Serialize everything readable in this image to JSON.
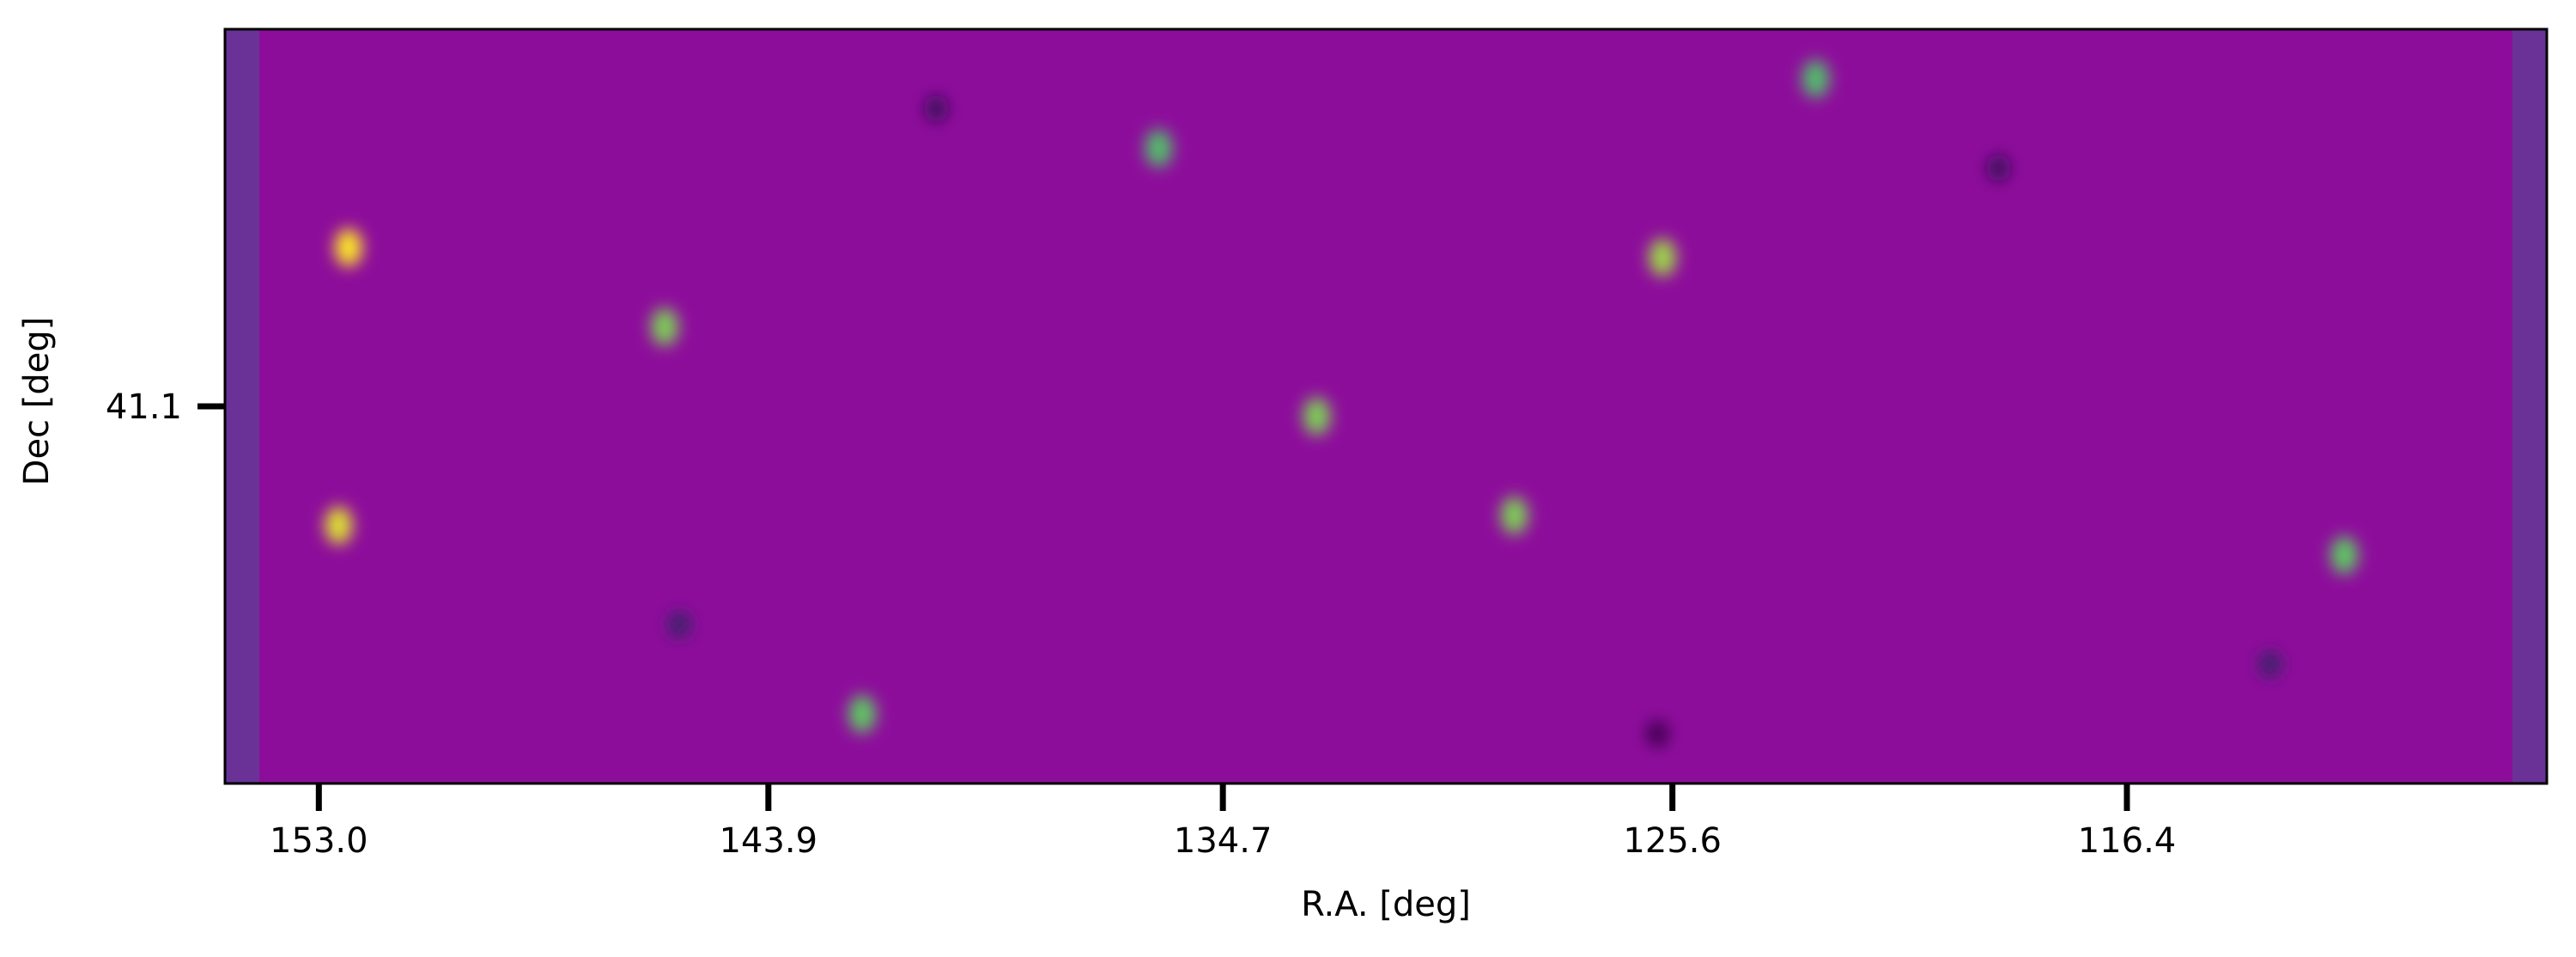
{
  "chart_data": {
    "type": "heatmap",
    "title": "",
    "xlabel": "R.A. [deg]",
    "ylabel": "Dec [deg]",
    "x_ticks": [
      {
        "value": 153.0,
        "label": "153.0"
      },
      {
        "value": 143.9,
        "label": "143.9"
      },
      {
        "value": 134.7,
        "label": "134.7"
      },
      {
        "value": 125.6,
        "label": "125.6"
      },
      {
        "value": 116.4,
        "label": "116.4"
      }
    ],
    "y_ticks": [
      {
        "value": 41.1,
        "label": "41.1"
      }
    ],
    "xlim": [
      154.9,
      107.9
    ],
    "x_inverted": true,
    "ylim": [
      37.3,
      44.9
    ],
    "colormap": "viridis",
    "colorbar": false,
    "grid": false,
    "bright_spots": [
      {
        "x": 152.4,
        "y": 42.7,
        "intensity": 1.0
      },
      {
        "x": 152.6,
        "y": 39.9,
        "intensity": 0.95
      },
      {
        "x": 146.0,
        "y": 41.9,
        "intensity": 0.8
      },
      {
        "x": 132.8,
        "y": 41.0,
        "intensity": 0.8
      },
      {
        "x": 125.8,
        "y": 42.6,
        "intensity": 0.85
      },
      {
        "x": 128.8,
        "y": 40.0,
        "intensity": 0.8
      },
      {
        "x": 112.0,
        "y": 39.6,
        "intensity": 0.75
      },
      {
        "x": 142.0,
        "y": 38.0,
        "intensity": 0.75
      },
      {
        "x": 136.0,
        "y": 43.7,
        "intensity": 0.7
      },
      {
        "x": 122.7,
        "y": 44.4,
        "intensity": 0.7
      }
    ],
    "dark_spots": [
      {
        "x": 125.9,
        "y": 37.8,
        "intensity": 0.0
      },
      {
        "x": 140.5,
        "y": 44.1,
        "intensity": 0.05
      },
      {
        "x": 119.0,
        "y": 43.5,
        "intensity": 0.05
      },
      {
        "x": 145.7,
        "y": 38.9,
        "intensity": 0.1
      },
      {
        "x": 113.5,
        "y": 38.5,
        "intensity": 0.1
      }
    ],
    "colors": {
      "background": "#ffffff",
      "frame": "#000000"
    }
  }
}
